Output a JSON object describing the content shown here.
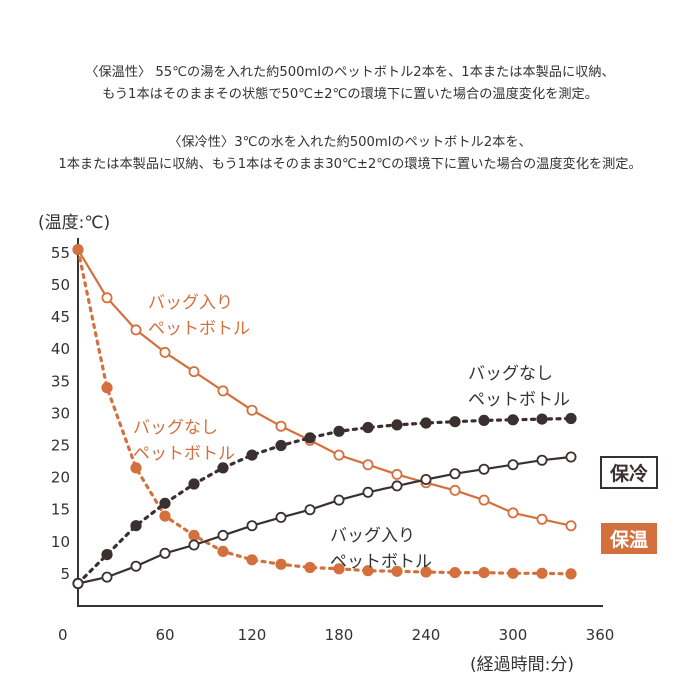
{
  "description": {
    "warm_line1": "〈保温性〉 55℃の湯を入れた約500mlのペットボトル2本を、1本または本製品に収納、",
    "warm_line2": "もう1本はそのままその状態で50℃±2℃の環境下に置いた場合の温度変化を測定。",
    "cold_line1": "〈保冷性〉3℃の水を入れた約500mlのペットボトル2本を、",
    "cold_line2": "1本または本製品に収納、もう1本はそのまま30℃±2℃の環境下に置いた場合の温度変化を測定。"
  },
  "chart_data": {
    "type": "line",
    "ylabel": "(温度:℃)",
    "xlabel": "(経過時間:分)",
    "xlim": [
      0,
      360
    ],
    "ylim": [
      0,
      57
    ],
    "x_ticks": [
      0,
      60,
      120,
      180,
      240,
      300,
      360
    ],
    "y_ticks": [
      5,
      10,
      15,
      20,
      25,
      30,
      35,
      40,
      45,
      50,
      55
    ],
    "x": [
      0,
      20,
      40,
      60,
      80,
      100,
      120,
      140,
      160,
      180,
      200,
      220,
      240,
      260,
      280,
      300,
      320,
      340
    ],
    "series": [
      {
        "name": "保温 バッグ入りペットボトル",
        "group": "保温",
        "color": "#d4703e",
        "style": "solid",
        "marker": "hollow",
        "values": [
          55.5,
          48,
          43,
          39.5,
          36.5,
          33.5,
          30.5,
          28,
          25.8,
          23.5,
          22,
          20.5,
          19.2,
          18,
          16.5,
          14.5,
          13.5,
          12.5
        ]
      },
      {
        "name": "保温 バッグなしペットボトル",
        "group": "保温",
        "color": "#d4703e",
        "style": "dotted",
        "marker": "filled",
        "values": [
          55.5,
          34,
          21.5,
          14,
          11,
          8.5,
          7.2,
          6.5,
          6,
          5.8,
          5.5,
          5.4,
          5.3,
          5.2,
          5.2,
          5.1,
          5.1,
          5.0
        ]
      },
      {
        "name": "保冷 バッグなしペットボトル",
        "group": "保冷",
        "color": "#3a3030",
        "style": "dotted",
        "marker": "filled",
        "values": [
          3.5,
          8,
          12.5,
          16,
          19,
          21.5,
          23.5,
          25,
          26.2,
          27.2,
          27.8,
          28.2,
          28.5,
          28.7,
          28.9,
          29,
          29.1,
          29.2
        ]
      },
      {
        "name": "保冷 バッグ入りペットボトル",
        "group": "保冷",
        "color": "#3a3030",
        "style": "solid",
        "marker": "hollow",
        "values": [
          3.5,
          4.5,
          6.2,
          8.2,
          9.5,
          11,
          12.5,
          13.8,
          15,
          16.5,
          17.7,
          18.7,
          19.7,
          20.6,
          21.3,
          22,
          22.7,
          23.2
        ]
      }
    ],
    "annotations": {
      "warm_bag_line1": "バッグ入り",
      "warm_bag_line2": "ペットボトル",
      "warm_nobag_line1": "バッグなし",
      "warm_nobag_line2": "ペットボトル",
      "cold_nobag_line1": "バッグなし",
      "cold_nobag_line2": "ペットボトル",
      "cold_bag_line1": "バッグ入り",
      "cold_bag_line2": "ペットボトル"
    },
    "legend": {
      "cold": "保冷",
      "warm": "保温"
    }
  },
  "colors": {
    "orange": "#d4703e",
    "dark": "#3a3030",
    "axis": "#333333"
  }
}
